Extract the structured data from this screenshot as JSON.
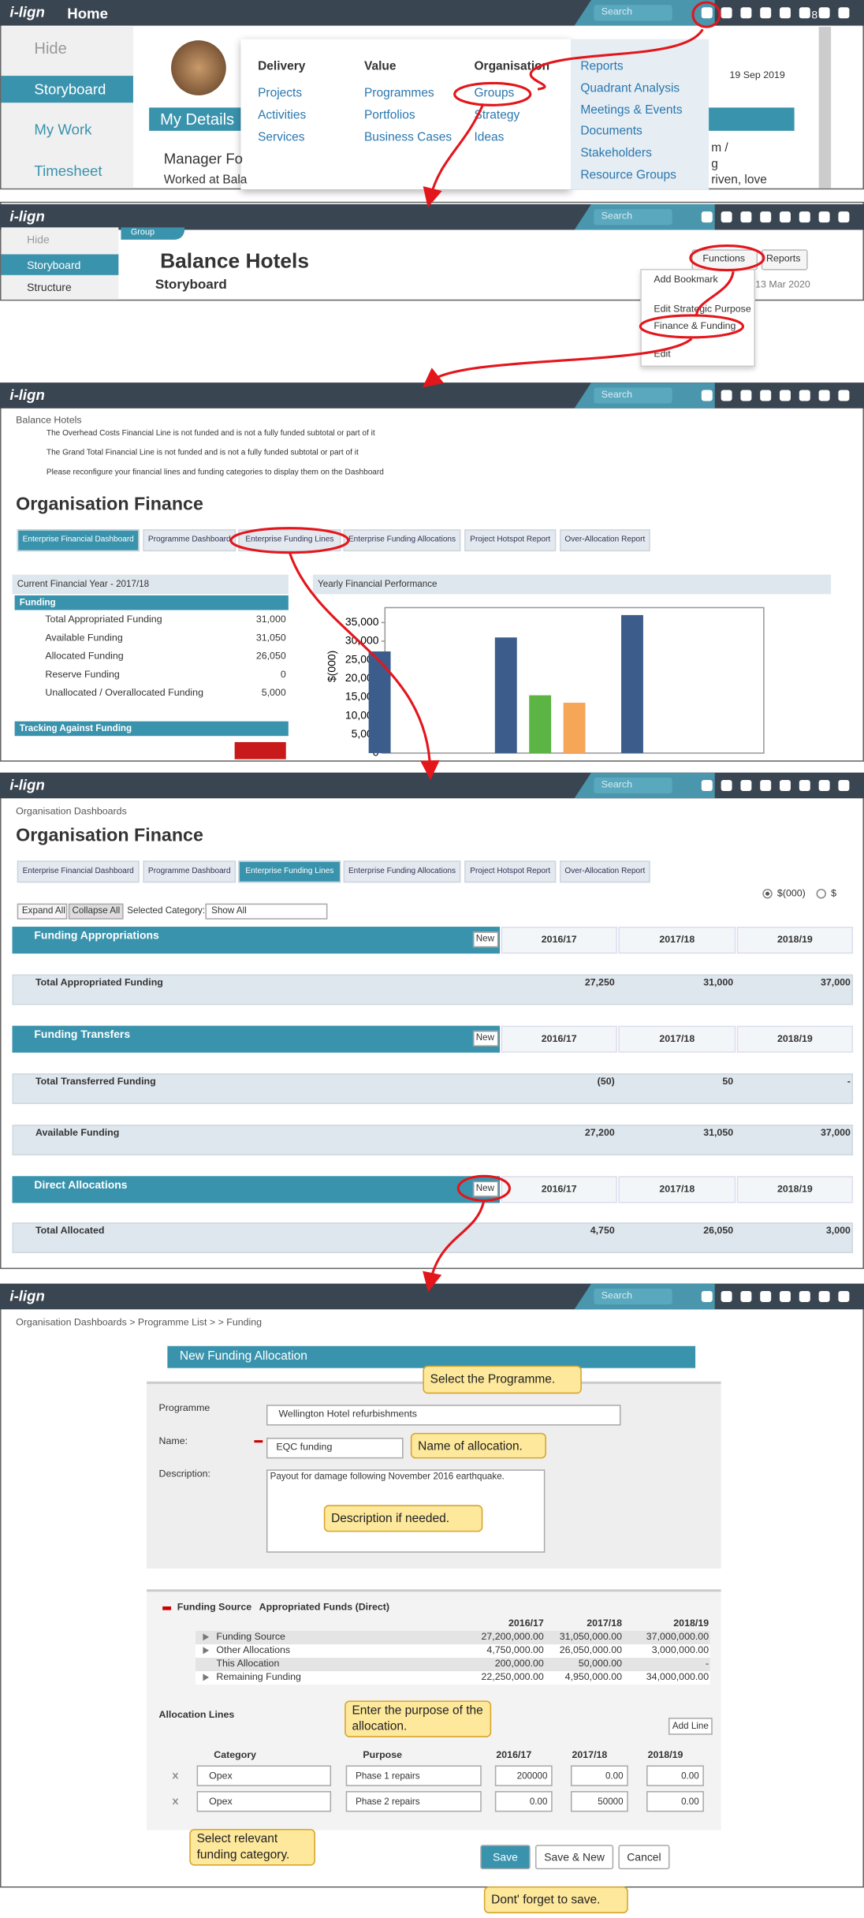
{
  "logo": "i-lign",
  "search": "Search",
  "tabs": [
    "Enterprise Financial Dashboard",
    "Programme Dashboard",
    "Enterprise Funding Lines",
    "Enterprise Funding Allocations",
    "Project Hotspot Report",
    "Over-Allocation Report"
  ],
  "finance_title": "Organisation Finance",
  "panel1": {
    "title": "Home",
    "badge": "8",
    "sidebar": [
      "Hide",
      "Storyboard",
      "My Work",
      "Timesheet"
    ],
    "date": "19 Sep 2019",
    "section": "My Details",
    "lines": [
      "Manager Fo",
      "Worked at Bala"
    ],
    "right_lines": [
      "m /",
      "g",
      "riven, love"
    ],
    "menu": {
      "columns": [
        {
          "heading": "Delivery",
          "items": [
            "Projects",
            "Activities",
            "Services"
          ]
        },
        {
          "heading": "Value",
          "items": [
            "Programmes",
            "Portfolios",
            "Business Cases"
          ]
        },
        {
          "heading": "Organisation",
          "items": [
            "Groups",
            "Strategy",
            "Ideas"
          ]
        }
      ],
      "links": [
        "Reports",
        "Quadrant Analysis",
        "Meetings & Events",
        "Documents",
        "Stakeholders",
        "Resource Groups"
      ]
    }
  },
  "panel2": {
    "sidebar": [
      "Hide",
      "Storyboard",
      "Structure"
    ],
    "tag": "Group",
    "title": "Balance Hotels",
    "subtitle": "Storyboard",
    "buttons": [
      "Functions",
      "Reports"
    ],
    "date": "13 Mar 2020",
    "dropdown": [
      "Add Bookmark",
      "Edit Strategic Purpose",
      "Finance & Funding",
      "Edit"
    ]
  },
  "panel3": {
    "breadcrumb": "Balance Hotels",
    "messages": [
      "The Overhead Costs Financial Line is not funded and is not a fully funded subtotal or part of it",
      "The Grand Total Financial Line is not funded and is not a fully funded subtotal or part of it",
      "Please reconfigure your financial lines and funding categories to display them on the Dashboard"
    ],
    "year_header": "Current Financial Year - 2017/18",
    "funding_header": "Funding",
    "rows": [
      [
        "Total Appropriated Funding",
        "31,000"
      ],
      [
        "Available Funding",
        "31,050"
      ],
      [
        "Allocated Funding",
        "26,050"
      ],
      [
        "Reserve Funding",
        "0"
      ],
      [
        "Unallocated / Overallocated Funding",
        "5,000"
      ]
    ],
    "tracking": "Tracking Against Funding"
  },
  "chart_data": {
    "type": "bar",
    "title": "Yearly Financial Performance",
    "y_label": "$(000)",
    "categories": [
      null,
      null,
      null
    ],
    "series": [
      {
        "color": "#3c5d8c",
        "values": [
          27250,
          31000,
          37000
        ]
      },
      {
        "color": "#5cb444",
        "values": [
          null,
          15500,
          null
        ]
      },
      {
        "color": "#f6a657",
        "values": [
          null,
          13500,
          null
        ]
      }
    ],
    "ylim": [
      0,
      39000
    ],
    "yticks": [
      0,
      {
        "value": 5000,
        "label": "5,000"
      },
      {
        "value": 10000,
        "label": "10,000"
      },
      {
        "value": 15000,
        "label": "15,000"
      },
      {
        "value": 20000,
        "label": "20,000"
      },
      {
        "value": 25000,
        "label": "25,000"
      },
      {
        "value": 30000,
        "label": "30,000"
      },
      {
        "value": 35000,
        "label": "35,000"
      }
    ],
    "grid": false
  },
  "panel4": {
    "breadcrumb": "Organisation Dashboards",
    "units": [
      "$(000)",
      "$"
    ],
    "buttons": [
      "Expand All",
      "Collapse All"
    ],
    "category_label": "Selected Category:",
    "category_value": "Show All",
    "new": "New",
    "years": [
      "2016/17",
      "2017/18",
      "2018/19"
    ],
    "sections": [
      {
        "heading": "Funding Appropriations",
        "row": "Total Appropriated Funding",
        "values": [
          "27,250",
          "31,000",
          "37,000"
        ]
      },
      {
        "heading": "Funding Transfers",
        "row": "Total Transferred Funding",
        "values": [
          "(50)",
          "50",
          "-"
        ]
      },
      {
        "heading": "Direct Allocations",
        "row": "Total Allocated",
        "values": [
          "4,750",
          "26,050",
          "3,000"
        ]
      }
    ],
    "available": {
      "row": "Available Funding",
      "values": [
        "27,200",
        "31,050",
        "37,000"
      ]
    }
  },
  "panel5": {
    "breadcrumb": "Organisation Dashboards > Programme List >  > Funding",
    "header": "New Funding Allocation",
    "labels": [
      "Programme",
      "Name:",
      "Description:"
    ],
    "programme": "Wellington Hotel refurbishments",
    "name": "EQC funding",
    "description": "Payout for damage following November 2016 earthquake.",
    "callouts": [
      "Select the Programme.",
      "Name of allocation.",
      "Description if needed.",
      "Enter the purpose of the allocation.",
      "Select relevant funding category.",
      "Dont' forget to save."
    ],
    "source_label": "Funding Source",
    "source_value": "Appropriated Funds (Direct)",
    "years": [
      "2016/17",
      "2017/18",
      "2018/19"
    ],
    "funding_rows": [
      {
        "label": "Funding Source",
        "values": [
          "27,200,000.00",
          "31,050,000.00",
          "37,000,000.00"
        ]
      },
      {
        "label": "Other Allocations",
        "values": [
          "4,750,000.00",
          "26,050,000.00",
          "3,000,000.00"
        ]
      },
      {
        "label": "This Allocation",
        "values": [
          "200,000.00",
          "50,000.00",
          "-"
        ]
      },
      {
        "label": "Remaining Funding",
        "values": [
          "22,250,000.00",
          "4,950,000.00",
          "34,000,000.00"
        ]
      }
    ],
    "lines_title": "Allocation Lines",
    "add_line": "Add Line",
    "line_headers": [
      "Category",
      "Purpose"
    ],
    "lines": [
      {
        "category": "Opex",
        "purpose": "Phase 1 repairs",
        "values": [
          "200000",
          "0.00",
          "0.00"
        ]
      },
      {
        "category": "Opex",
        "purpose": "Phase 2 repairs",
        "values": [
          "0.00",
          "50000",
          "0.00"
        ]
      }
    ],
    "actions": [
      "Save",
      "Save & New",
      "Cancel"
    ]
  }
}
